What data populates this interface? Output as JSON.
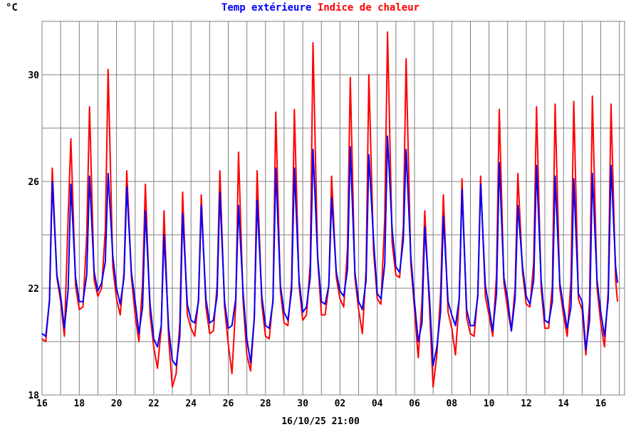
{
  "chart_data": {
    "type": "line",
    "title_parts": [
      {
        "text": "Temp extérieure",
        "color": "#0000ff"
      },
      {
        "text": "Indice de chaleur",
        "color": "#ff0000"
      }
    ],
    "unit_label": "°C",
    "timestamp": "16/10/25 21:00",
    "ylim": [
      18,
      32
    ],
    "yticks": [
      18,
      22,
      26,
      30
    ],
    "y_gridlines": [
      18,
      20,
      22,
      24,
      26,
      28,
      30
    ],
    "x_range_days": [
      0,
      30.9
    ],
    "x_ticks": [
      {
        "day": 0,
        "label": "16"
      },
      {
        "day": 2,
        "label": "18"
      },
      {
        "day": 4,
        "label": "20"
      },
      {
        "day": 6,
        "label": "22"
      },
      {
        "day": 8,
        "label": "24"
      },
      {
        "day": 10,
        "label": "26"
      },
      {
        "day": 12,
        "label": "28"
      },
      {
        "day": 14,
        "label": "30"
      },
      {
        "day": 16,
        "label": "02"
      },
      {
        "day": 18,
        "label": "04"
      },
      {
        "day": 20,
        "label": "06"
      },
      {
        "day": 22,
        "label": "08"
      },
      {
        "day": 24,
        "label": "10"
      },
      {
        "day": 26,
        "label": "12"
      },
      {
        "day": 28,
        "label": "14"
      },
      {
        "day": 30,
        "label": "16"
      }
    ],
    "grid": true,
    "series": [
      {
        "name": "Temp extérieure",
        "color": "#0000ff",
        "x": [
          0.0,
          0.2,
          0.4,
          0.55,
          0.8,
          1.0,
          1.2,
          1.4,
          1.55,
          1.8,
          2.0,
          2.2,
          2.4,
          2.55,
          2.8,
          3.0,
          3.2,
          3.4,
          3.55,
          3.8,
          4.0,
          4.2,
          4.4,
          4.55,
          4.8,
          5.0,
          5.2,
          5.4,
          5.55,
          5.8,
          6.0,
          6.2,
          6.4,
          6.55,
          6.8,
          7.0,
          7.2,
          7.4,
          7.55,
          7.8,
          8.0,
          8.2,
          8.4,
          8.55,
          8.8,
          9.0,
          9.2,
          9.4,
          9.55,
          9.8,
          10.0,
          10.2,
          10.4,
          10.55,
          10.8,
          11.0,
          11.2,
          11.4,
          11.55,
          11.8,
          12.0,
          12.2,
          12.4,
          12.55,
          12.8,
          13.0,
          13.2,
          13.4,
          13.55,
          13.8,
          14.0,
          14.2,
          14.4,
          14.55,
          14.8,
          15.0,
          15.2,
          15.4,
          15.55,
          15.8,
          16.0,
          16.2,
          16.4,
          16.55,
          16.8,
          17.0,
          17.2,
          17.4,
          17.55,
          17.8,
          18.0,
          18.2,
          18.4,
          18.55,
          18.8,
          19.0,
          19.2,
          19.4,
          19.55,
          19.8,
          20.0,
          20.2,
          20.4,
          20.55,
          20.8,
          21.0,
          21.2,
          21.4,
          21.55,
          21.8,
          22.0,
          22.2,
          22.4,
          22.55,
          22.8,
          23.0,
          23.2,
          23.4,
          23.55,
          23.8,
          24.0,
          24.2,
          24.4,
          24.55,
          24.8,
          25.0,
          25.2,
          25.4,
          25.55,
          25.8,
          26.0,
          26.2,
          26.4,
          26.55,
          26.8,
          27.0,
          27.2,
          27.4,
          27.55,
          27.8,
          28.0,
          28.2,
          28.4,
          28.55,
          28.8,
          29.0,
          29.2,
          29.4,
          29.55,
          29.8,
          30.0,
          30.2,
          30.4,
          30.55,
          30.8,
          30.9
        ],
        "values": [
          20.3,
          20.2,
          21.5,
          26.0,
          22.5,
          21.7,
          20.5,
          21.9,
          25.9,
          22.4,
          21.5,
          21.5,
          22.5,
          26.2,
          22.6,
          21.9,
          22.2,
          23.0,
          26.3,
          23.2,
          22.0,
          21.4,
          22.4,
          25.8,
          22.6,
          21.5,
          20.3,
          21.3,
          24.9,
          21.4,
          20.1,
          19.8,
          20.6,
          24.0,
          20.5,
          19.3,
          19.1,
          20.2,
          24.8,
          21.4,
          20.8,
          20.7,
          21.5,
          25.1,
          21.6,
          20.7,
          20.8,
          21.7,
          25.6,
          21.5,
          20.5,
          20.6,
          21.6,
          25.1,
          21.8,
          20.1,
          19.2,
          20.9,
          25.3,
          21.7,
          20.6,
          20.5,
          21.5,
          26.5,
          22.1,
          21.1,
          20.8,
          21.9,
          26.5,
          22.3,
          21.1,
          21.3,
          22.4,
          27.2,
          23.2,
          21.5,
          21.4,
          22.1,
          25.4,
          22.6,
          21.9,
          21.7,
          22.7,
          27.3,
          22.6,
          21.5,
          21.2,
          22.3,
          27.0,
          23.8,
          21.8,
          21.6,
          22.9,
          27.7,
          24.2,
          22.8,
          22.6,
          23.8,
          27.2,
          23.2,
          21.5,
          20.0,
          20.7,
          24.3,
          21.7,
          19.1,
          19.8,
          21.1,
          24.7,
          21.5,
          21.0,
          20.6,
          21.6,
          25.7,
          21.2,
          20.6,
          20.6,
          21.7,
          25.9,
          22.1,
          21.3,
          20.4,
          21.8,
          26.7,
          22.4,
          21.6,
          20.4,
          21.6,
          25.1,
          22.8,
          21.7,
          21.4,
          22.3,
          26.6,
          22.3,
          20.8,
          20.7,
          21.5,
          26.2,
          22.2,
          21.3,
          20.5,
          21.3,
          26.1,
          21.8,
          21.5,
          19.7,
          20.8,
          26.3,
          22.3,
          21.1,
          20.2,
          21.6,
          26.6,
          22.8,
          22.2
        ]
      },
      {
        "name": "Indice de chaleur",
        "color": "#ff0000",
        "x": [
          0.0,
          0.2,
          0.4,
          0.55,
          0.8,
          1.0,
          1.2,
          1.4,
          1.55,
          1.8,
          2.0,
          2.2,
          2.4,
          2.55,
          2.8,
          3.0,
          3.2,
          3.4,
          3.55,
          3.8,
          4.0,
          4.2,
          4.4,
          4.55,
          4.8,
          5.0,
          5.2,
          5.4,
          5.55,
          5.8,
          6.0,
          6.2,
          6.4,
          6.55,
          6.8,
          7.0,
          7.2,
          7.4,
          7.55,
          7.8,
          8.0,
          8.2,
          8.4,
          8.55,
          8.8,
          9.0,
          9.2,
          9.4,
          9.55,
          9.8,
          10.0,
          10.2,
          10.4,
          10.55,
          10.8,
          11.0,
          11.2,
          11.4,
          11.55,
          11.8,
          12.0,
          12.2,
          12.4,
          12.55,
          12.8,
          13.0,
          13.2,
          13.4,
          13.55,
          13.8,
          14.0,
          14.2,
          14.4,
          14.55,
          14.8,
          15.0,
          15.2,
          15.4,
          15.55,
          15.8,
          16.0,
          16.2,
          16.4,
          16.55,
          16.8,
          17.0,
          17.2,
          17.4,
          17.55,
          17.8,
          18.0,
          18.2,
          18.4,
          18.55,
          18.8,
          19.0,
          19.2,
          19.4,
          19.55,
          19.8,
          20.0,
          20.2,
          20.4,
          20.55,
          20.8,
          21.0,
          21.2,
          21.4,
          21.55,
          21.8,
          22.0,
          22.2,
          22.4,
          22.55,
          22.8,
          23.0,
          23.2,
          23.4,
          23.55,
          23.8,
          24.0,
          24.2,
          24.4,
          24.55,
          24.8,
          25.0,
          25.2,
          25.4,
          25.55,
          25.8,
          26.0,
          26.2,
          26.4,
          26.55,
          26.8,
          27.0,
          27.2,
          27.4,
          27.55,
          27.8,
          28.0,
          28.2,
          28.4,
          28.55,
          28.8,
          29.0,
          29.2,
          29.4,
          29.55,
          29.8,
          30.0,
          30.2,
          30.4,
          30.55,
          30.8,
          30.9
        ],
        "values": [
          20.1,
          20.0,
          21.6,
          26.5,
          22.4,
          21.5,
          20.2,
          24.6,
          27.6,
          22.1,
          21.2,
          21.3,
          24.0,
          28.8,
          22.3,
          21.7,
          22.0,
          24.2,
          30.2,
          22.8,
          21.6,
          21.0,
          22.6,
          26.4,
          22.4,
          21.0,
          20.0,
          22.2,
          25.9,
          21.0,
          19.8,
          19.0,
          20.5,
          24.9,
          20.1,
          18.3,
          18.8,
          20.7,
          25.6,
          21.0,
          20.5,
          20.2,
          21.6,
          25.5,
          21.3,
          20.3,
          20.4,
          22.1,
          26.4,
          21.3,
          19.9,
          18.8,
          21.4,
          27.1,
          21.5,
          19.5,
          18.9,
          20.9,
          26.4,
          21.4,
          20.2,
          20.1,
          21.6,
          28.6,
          21.9,
          20.7,
          20.6,
          22.2,
          28.7,
          22.1,
          20.8,
          21.0,
          22.9,
          31.2,
          23.1,
          21.0,
          21.0,
          22.1,
          26.2,
          22.4,
          21.6,
          21.3,
          23.5,
          29.9,
          22.4,
          21.2,
          20.3,
          22.7,
          30.0,
          23.4,
          21.6,
          21.4,
          24.6,
          31.6,
          23.7,
          22.5,
          22.4,
          24.3,
          30.6,
          22.9,
          21.2,
          19.4,
          21.5,
          24.9,
          21.3,
          18.3,
          19.5,
          21.8,
          25.5,
          21.1,
          20.5,
          19.5,
          21.6,
          26.1,
          20.9,
          20.3,
          20.2,
          21.8,
          26.2,
          21.7,
          21.0,
          20.2,
          22.5,
          28.7,
          22.2,
          21.2,
          20.4,
          22.0,
          26.3,
          22.6,
          21.4,
          21.3,
          23.0,
          28.8,
          22.0,
          20.5,
          20.5,
          22.1,
          28.9,
          22.0,
          21.0,
          20.2,
          22.3,
          29.0,
          21.6,
          21.2,
          19.5,
          21.5,
          29.2,
          22.0,
          20.7,
          19.8,
          21.9,
          28.9,
          22.3,
          21.5
        ]
      }
    ]
  }
}
